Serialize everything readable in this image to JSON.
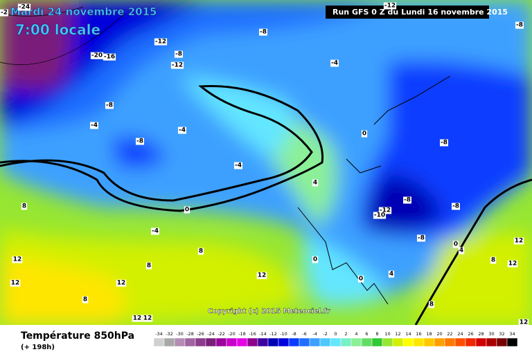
{
  "header": {
    "date": "Mardi 24 novembre 2015",
    "time": "7:00 locale",
    "run": "Run GFS 0 Z du Lundi 16 novembre 2015"
  },
  "copyright": "Copyright (c) 2015 Meteociel.fr",
  "footer": {
    "title": "Température 850hPa",
    "lead": "(+ 198h)"
  },
  "scale": {
    "values": [
      -34,
      -32,
      -30,
      -28,
      -26,
      -24,
      -22,
      -20,
      -18,
      -16,
      -14,
      -12,
      -10,
      -8,
      -6,
      -4,
      -2,
      0,
      2,
      4,
      6,
      8,
      10,
      12,
      14,
      16,
      18,
      20,
      22,
      24,
      26,
      28,
      30,
      32,
      34
    ],
    "colors": [
      "#d0d0d0",
      "#a8a8a8",
      "#b48cb4",
      "#a064a0",
      "#8c3c8c",
      "#7a1f7a",
      "#9b009b",
      "#c800c8",
      "#e600e6",
      "#8c008c",
      "#3c00a0",
      "#0000b4",
      "#0000dc",
      "#0a3cff",
      "#1e6eff",
      "#3ca0ff",
      "#50c8ff",
      "#64e6ff",
      "#78f0c8",
      "#8cf096",
      "#64dc64",
      "#32c832",
      "#96e632",
      "#d2f000",
      "#ffff00",
      "#ffe600",
      "#ffc800",
      "#ffa000",
      "#ff7800",
      "#ff5000",
      "#f02800",
      "#d20000",
      "#aa0000",
      "#780000",
      "#000000"
    ]
  },
  "map_labels": [
    -2,
    -24,
    -20,
    -16,
    -12,
    -8,
    -12,
    -8,
    -12,
    -8,
    -4,
    -8,
    -4,
    -4,
    -8,
    -4,
    0,
    -8,
    4,
    0,
    -4,
    -8,
    -8,
    -12,
    -10,
    -8,
    8,
    8,
    12,
    12,
    12,
    8,
    12,
    0,
    0,
    0,
    4,
    12,
    8,
    12,
    8,
    12,
    12,
    8,
    4,
    12
  ]
}
